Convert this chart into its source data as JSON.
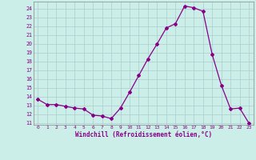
{
  "x": [
    0,
    1,
    2,
    3,
    4,
    5,
    6,
    7,
    8,
    9,
    10,
    11,
    12,
    13,
    14,
    15,
    16,
    17,
    18,
    19,
    20,
    21,
    22,
    23
  ],
  "y": [
    13.7,
    13.1,
    13.1,
    12.9,
    12.7,
    12.6,
    11.9,
    11.8,
    11.5,
    12.7,
    14.5,
    16.4,
    18.3,
    20.0,
    21.8,
    22.3,
    24.3,
    24.1,
    23.7,
    18.8,
    15.3,
    12.6,
    12.7,
    11.0
  ],
  "line_color": "#880088",
  "marker": "D",
  "marker_size": 2,
  "bg_color": "#cceee8",
  "grid_color": "#aacccc",
  "xlabel": "Windchill (Refroidissement éolien,°C)",
  "ylabel_ticks": [
    11,
    12,
    13,
    14,
    15,
    16,
    17,
    18,
    19,
    20,
    21,
    22,
    23,
    24
  ],
  "xlim": [
    -0.5,
    23.5
  ],
  "ylim": [
    10.8,
    24.8
  ]
}
